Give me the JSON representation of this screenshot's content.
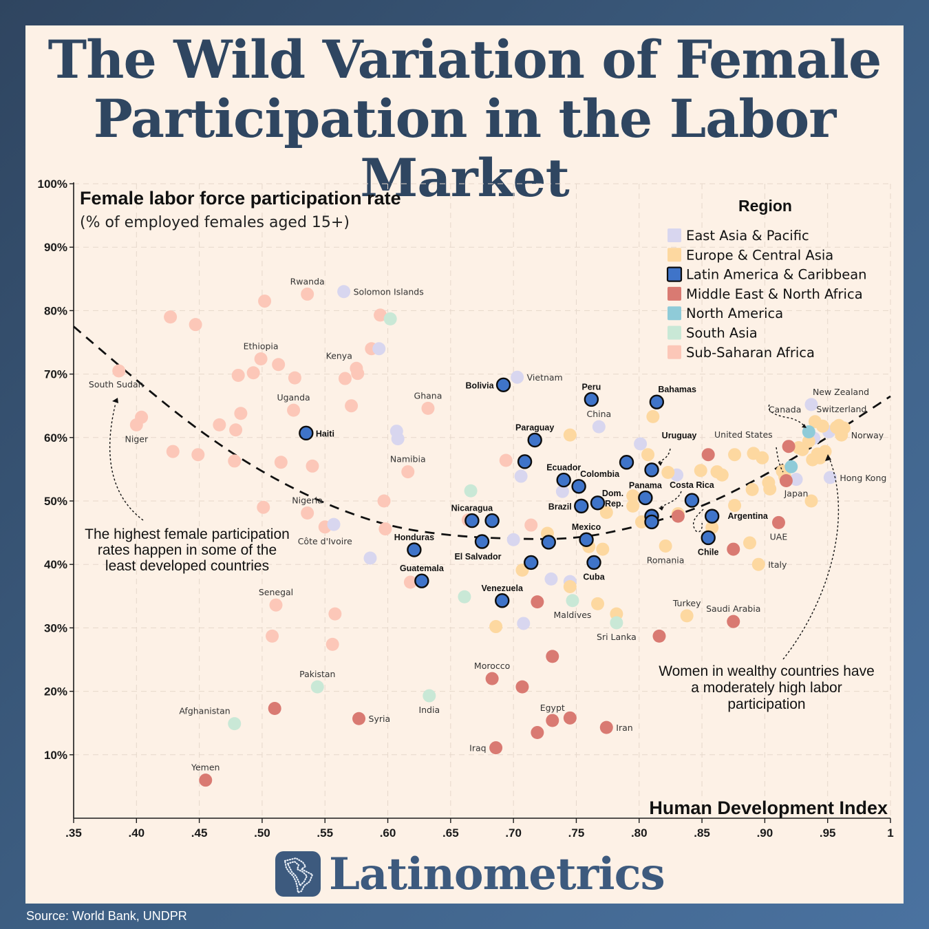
{
  "title_line1": "The Wild Variation of Female",
  "title_line2": "Participation in the Labor Market",
  "source": "Source: World Bank, UNDPR",
  "brand": "Latinometrics",
  "chart_data": {
    "type": "scatter",
    "title": "Female labor force participation rate",
    "subtitle": "(% of employed females aged 15+)",
    "xlabel": "Human Development Index",
    "xlim": [
      0.35,
      1.0
    ],
    "ylim": [
      0,
      100
    ],
    "xticks": [
      ".35",
      ".40",
      ".45",
      ".50",
      ".55",
      ".60",
      ".65",
      ".70",
      ".75",
      ".80",
      ".85",
      ".90",
      ".95",
      "1"
    ],
    "yticks": [
      "10%",
      "20%",
      "30%",
      "40%",
      "50%",
      "60%",
      "70%",
      "80%",
      "90%",
      "100%"
    ],
    "grid": true,
    "legend_position": "top-right",
    "legend_title": "Region",
    "regions": [
      {
        "key": "eap",
        "name": "East Asia & Pacific",
        "color": "#d8d6ef"
      },
      {
        "key": "eca",
        "name": "Europe & Central Asia",
        "color": "#fdd8a0"
      },
      {
        "key": "lac",
        "name": "Latin America & Caribbean",
        "color": "#3f74c9"
      },
      {
        "key": "mena",
        "name": "Middle East & North Africa",
        "color": "#d97a72"
      },
      {
        "key": "na",
        "name": "North America",
        "color": "#8fcbd8"
      },
      {
        "key": "sa",
        "name": "South Asia",
        "color": "#c9e8d6"
      },
      {
        "key": "ssa",
        "name": "Sub-Saharan Africa",
        "color": "#fcc7b8"
      }
    ],
    "trend": {
      "x": [
        0.35,
        0.4,
        0.45,
        0.5,
        0.55,
        0.6,
        0.65,
        0.7,
        0.75,
        0.8,
        0.85,
        0.9,
        0.95,
        1.0
      ],
      "y": [
        77.5,
        69,
        61,
        54.5,
        49.5,
        46,
        44.5,
        44,
        44,
        46,
        49,
        54,
        60,
        66.5
      ]
    },
    "points": [
      {
        "x": 0.386,
        "y": 70.5,
        "r": "ssa",
        "label": "South Sudan",
        "lp": "bl"
      },
      {
        "x": 0.4,
        "y": 62.0,
        "r": "ssa",
        "label": "Niger",
        "lp": "b"
      },
      {
        "x": 0.404,
        "y": 63.2,
        "r": "ssa"
      },
      {
        "x": 0.427,
        "y": 79.0,
        "r": "ssa"
      },
      {
        "x": 0.429,
        "y": 57.8,
        "r": "ssa"
      },
      {
        "x": 0.447,
        "y": 77.8,
        "r": "ssa"
      },
      {
        "x": 0.449,
        "y": 57.3,
        "r": "ssa"
      },
      {
        "x": 0.466,
        "y": 62.0,
        "r": "ssa"
      },
      {
        "x": 0.478,
        "y": 56.3,
        "r": "ssa"
      },
      {
        "x": 0.479,
        "y": 61.2,
        "r": "ssa"
      },
      {
        "x": 0.481,
        "y": 69.8,
        "r": "ssa"
      },
      {
        "x": 0.483,
        "y": 63.8,
        "r": "ssa"
      },
      {
        "x": 0.493,
        "y": 70.2,
        "r": "ssa"
      },
      {
        "x": 0.499,
        "y": 72.4,
        "r": "ssa",
        "label": "Ethiopia",
        "lp": "t"
      },
      {
        "x": 0.501,
        "y": 49.0,
        "r": "ssa"
      },
      {
        "x": 0.502,
        "y": 81.5,
        "r": "ssa"
      },
      {
        "x": 0.508,
        "y": 28.7,
        "r": "ssa"
      },
      {
        "x": 0.511,
        "y": 33.6,
        "r": "ssa",
        "label": "Senegal",
        "lp": "t"
      },
      {
        "x": 0.513,
        "y": 71.5,
        "r": "ssa"
      },
      {
        "x": 0.515,
        "y": 56.1,
        "r": "ssa"
      },
      {
        "x": 0.525,
        "y": 64.3,
        "r": "ssa",
        "label": "Uganda",
        "lp": "t"
      },
      {
        "x": 0.526,
        "y": 69.4,
        "r": "ssa"
      },
      {
        "x": 0.536,
        "y": 82.6,
        "r": "ssa",
        "label": "Rwanda",
        "lp": "t"
      },
      {
        "x": 0.536,
        "y": 48.1,
        "r": "ssa",
        "label": "Nigeria",
        "lp": "t"
      },
      {
        "x": 0.54,
        "y": 55.5,
        "r": "ssa"
      },
      {
        "x": 0.55,
        "y": 45.9,
        "r": "ssa",
        "label": "Côte d'Ivoire",
        "lp": "b"
      },
      {
        "x": 0.556,
        "y": 27.4,
        "r": "ssa"
      },
      {
        "x": 0.558,
        "y": 32.2,
        "r": "ssa"
      },
      {
        "x": 0.566,
        "y": 69.3,
        "r": "ssa"
      },
      {
        "x": 0.571,
        "y": 65.0,
        "r": "ssa"
      },
      {
        "x": 0.575,
        "y": 70.9,
        "r": "ssa",
        "label": "Kenya",
        "lp": "tl"
      },
      {
        "x": 0.576,
        "y": 70.1,
        "r": "ssa"
      },
      {
        "x": 0.587,
        "y": 74.0,
        "r": "ssa"
      },
      {
        "x": 0.594,
        "y": 79.3,
        "r": "ssa"
      },
      {
        "x": 0.597,
        "y": 50.0,
        "r": "ssa"
      },
      {
        "x": 0.598,
        "y": 45.6,
        "r": "ssa"
      },
      {
        "x": 0.616,
        "y": 54.6,
        "r": "ssa",
        "label": "Namibia",
        "lp": "t"
      },
      {
        "x": 0.618,
        "y": 37.2,
        "r": "ssa"
      },
      {
        "x": 0.632,
        "y": 64.6,
        "r": "ssa",
        "label": "Ghana",
        "lp": "t"
      },
      {
        "x": 0.664,
        "y": 47.0,
        "r": "ssa"
      },
      {
        "x": 0.694,
        "y": 56.4,
        "r": "ssa"
      },
      {
        "x": 0.714,
        "y": 46.2,
        "r": "ssa"
      },
      {
        "x": 0.557,
        "y": 46.3,
        "r": "eap"
      },
      {
        "x": 0.565,
        "y": 83.0,
        "r": "eap",
        "label": "Solomon Islands",
        "lp": "r"
      },
      {
        "x": 0.586,
        "y": 41.0,
        "r": "eap"
      },
      {
        "x": 0.593,
        "y": 74.0,
        "r": "eap"
      },
      {
        "x": 0.607,
        "y": 61.0,
        "r": "eap"
      },
      {
        "x": 0.608,
        "y": 59.8,
        "r": "eap"
      },
      {
        "x": 0.7,
        "y": 43.9,
        "r": "eap"
      },
      {
        "x": 0.703,
        "y": 69.5,
        "r": "eap",
        "label": "Vietnam",
        "lp": "r"
      },
      {
        "x": 0.706,
        "y": 53.9,
        "r": "eap"
      },
      {
        "x": 0.708,
        "y": 30.7,
        "r": "eap"
      },
      {
        "x": 0.73,
        "y": 37.7,
        "r": "eap"
      },
      {
        "x": 0.739,
        "y": 51.5,
        "r": "eap"
      },
      {
        "x": 0.745,
        "y": 37.3,
        "r": "eap"
      },
      {
        "x": 0.768,
        "y": 61.7,
        "r": "eap",
        "label": "China",
        "lp": "t"
      },
      {
        "x": 0.801,
        "y": 59.0,
        "r": "eap"
      },
      {
        "x": 0.83,
        "y": 54.1,
        "r": "eap"
      },
      {
        "x": 0.925,
        "y": 53.4,
        "r": "eap",
        "label": "Japan",
        "lp": "b"
      },
      {
        "x": 0.937,
        "y": 65.2,
        "r": "eap",
        "label": "New Zealand",
        "lp": "tr"
      },
      {
        "x": 0.939,
        "y": 59.9,
        "r": "eap"
      },
      {
        "x": 0.952,
        "y": 53.7,
        "r": "eap",
        "label": "Hong Kong",
        "lp": "r"
      },
      {
        "x": 0.951,
        "y": 60.9,
        "r": "eap"
      },
      {
        "x": 0.686,
        "y": 30.2,
        "r": "eca"
      },
      {
        "x": 0.707,
        "y": 39.1,
        "r": "eca"
      },
      {
        "x": 0.727,
        "y": 44.9,
        "r": "eca"
      },
      {
        "x": 0.745,
        "y": 60.4,
        "r": "eca"
      },
      {
        "x": 0.745,
        "y": 36.5,
        "r": "eca"
      },
      {
        "x": 0.76,
        "y": 42.8,
        "r": "eca"
      },
      {
        "x": 0.767,
        "y": 33.8,
        "r": "eca"
      },
      {
        "x": 0.771,
        "y": 42.4,
        "r": "eca"
      },
      {
        "x": 0.774,
        "y": 48.2,
        "r": "eca"
      },
      {
        "x": 0.782,
        "y": 32.2,
        "r": "eca"
      },
      {
        "x": 0.795,
        "y": 50.8,
        "r": "eca"
      },
      {
        "x": 0.795,
        "y": 49.2,
        "r": "eca"
      },
      {
        "x": 0.802,
        "y": 46.7,
        "r": "eca"
      },
      {
        "x": 0.807,
        "y": 57.3,
        "r": "eca"
      },
      {
        "x": 0.811,
        "y": 63.3,
        "r": "eca"
      },
      {
        "x": 0.821,
        "y": 42.9,
        "r": "eca",
        "label": "Romania",
        "lp": "b"
      },
      {
        "x": 0.823,
        "y": 54.5,
        "r": "eca"
      },
      {
        "x": 0.831,
        "y": 48.0,
        "r": "eca"
      },
      {
        "x": 0.838,
        "y": 31.9,
        "r": "eca",
        "label": "Turkey",
        "lp": "t"
      },
      {
        "x": 0.849,
        "y": 54.8,
        "r": "eca"
      },
      {
        "x": 0.858,
        "y": 45.8,
        "r": "eca"
      },
      {
        "x": 0.862,
        "y": 54.6,
        "r": "eca"
      },
      {
        "x": 0.866,
        "y": 54.1,
        "r": "eca"
      },
      {
        "x": 0.876,
        "y": 57.3,
        "r": "eca"
      },
      {
        "x": 0.876,
        "y": 49.3,
        "r": "eca"
      },
      {
        "x": 0.888,
        "y": 43.4,
        "r": "eca"
      },
      {
        "x": 0.89,
        "y": 51.8,
        "r": "eca"
      },
      {
        "x": 0.891,
        "y": 57.5,
        "r": "eca"
      },
      {
        "x": 0.895,
        "y": 40.0,
        "r": "eca",
        "label": "Italy",
        "lp": "r"
      },
      {
        "x": 0.898,
        "y": 56.8,
        "r": "eca"
      },
      {
        "x": 0.903,
        "y": 52.9,
        "r": "eca"
      },
      {
        "x": 0.904,
        "y": 51.9,
        "r": "eca"
      },
      {
        "x": 0.914,
        "y": 54.7,
        "r": "eca"
      },
      {
        "x": 0.916,
        "y": 53.8,
        "r": "eca"
      },
      {
        "x": 0.927,
        "y": 58.4,
        "r": "eca"
      },
      {
        "x": 0.93,
        "y": 58.1,
        "r": "eca"
      },
      {
        "x": 0.935,
        "y": 59.4,
        "r": "eca"
      },
      {
        "x": 0.937,
        "y": 50.0,
        "r": "eca"
      },
      {
        "x": 0.938,
        "y": 56.5,
        "r": "eca"
      },
      {
        "x": 0.94,
        "y": 62.5,
        "r": "eca",
        "label": "Switzerland",
        "lp": "tr"
      },
      {
        "x": 0.942,
        "y": 57.4,
        "r": "eca"
      },
      {
        "x": 0.944,
        "y": 56.8,
        "r": "eca"
      },
      {
        "x": 0.946,
        "y": 61.8,
        "r": "eca"
      },
      {
        "x": 0.948,
        "y": 57.8,
        "r": "eca"
      },
      {
        "x": 0.957,
        "y": 61.6,
        "r": "eca"
      },
      {
        "x": 0.959,
        "y": 61.9,
        "r": "eca"
      },
      {
        "x": 0.961,
        "y": 60.4,
        "r": "eca",
        "label": "Norway",
        "lp": "r"
      },
      {
        "x": 0.963,
        "y": 61.5,
        "r": "eca"
      },
      {
        "x": 0.51,
        "y": 17.3,
        "r": "mena"
      },
      {
        "x": 0.455,
        "y": 6.0,
        "r": "mena",
        "label": "Yemen",
        "lp": "t"
      },
      {
        "x": 0.577,
        "y": 15.7,
        "r": "mena",
        "label": "Syria",
        "lp": "r"
      },
      {
        "x": 0.683,
        "y": 22.0,
        "r": "mena",
        "label": "Morocco",
        "lp": "t"
      },
      {
        "x": 0.686,
        "y": 11.1,
        "r": "mena",
        "label": "Iraq",
        "lp": "l"
      },
      {
        "x": 0.707,
        "y": 20.7,
        "r": "mena"
      },
      {
        "x": 0.719,
        "y": 13.5,
        "r": "mena"
      },
      {
        "x": 0.719,
        "y": 34.1,
        "r": "mena"
      },
      {
        "x": 0.731,
        "y": 25.5,
        "r": "mena"
      },
      {
        "x": 0.731,
        "y": 15.4,
        "r": "mena",
        "label": "Egypt",
        "lp": "t"
      },
      {
        "x": 0.745,
        "y": 15.8,
        "r": "mena"
      },
      {
        "x": 0.774,
        "y": 14.3,
        "r": "mena",
        "label": "Iran",
        "lp": "r"
      },
      {
        "x": 0.816,
        "y": 28.7,
        "r": "mena"
      },
      {
        "x": 0.831,
        "y": 47.6,
        "r": "mena"
      },
      {
        "x": 0.855,
        "y": 57.3,
        "r": "mena"
      },
      {
        "x": 0.875,
        "y": 31.0,
        "r": "mena",
        "label": "Saudi Arabia",
        "lp": "t"
      },
      {
        "x": 0.875,
        "y": 42.4,
        "r": "mena"
      },
      {
        "x": 0.911,
        "y": 46.6,
        "r": "mena",
        "label": "UAE",
        "lp": "b"
      },
      {
        "x": 0.917,
        "y": 53.2,
        "r": "mena"
      },
      {
        "x": 0.919,
        "y": 58.6,
        "r": "mena"
      },
      {
        "x": 0.921,
        "y": 55.4,
        "r": "na"
      },
      {
        "x": 0.935,
        "y": 60.9,
        "r": "na"
      },
      {
        "x": 0.602,
        "y": 78.7,
        "r": "sa"
      },
      {
        "x": 0.544,
        "y": 20.7,
        "r": "sa",
        "label": "Pakistan",
        "lp": "t"
      },
      {
        "x": 0.478,
        "y": 14.9,
        "r": "sa",
        "label": "Afghanistan",
        "lp": "tl"
      },
      {
        "x": 0.633,
        "y": 19.3,
        "r": "sa",
        "label": "India",
        "lp": "b"
      },
      {
        "x": 0.661,
        "y": 34.9,
        "r": "sa"
      },
      {
        "x": 0.666,
        "y": 51.6,
        "r": "sa"
      },
      {
        "x": 0.747,
        "y": 34.3,
        "r": "sa",
        "label": "Maldives",
        "lp": "b"
      },
      {
        "x": 0.782,
        "y": 30.8,
        "r": "sa",
        "label": "Sri Lanka",
        "lp": "b"
      },
      {
        "x": 0.535,
        "y": 60.7,
        "r": "lac",
        "label": "Haiti",
        "lp": "r"
      },
      {
        "x": 0.621,
        "y": 42.3,
        "r": "lac",
        "label": "Honduras",
        "lp": "t"
      },
      {
        "x": 0.627,
        "y": 37.4,
        "r": "lac",
        "label": "Guatemala",
        "lp": "t"
      },
      {
        "x": 0.667,
        "y": 46.9,
        "r": "lac",
        "label": "Nicaragua",
        "lp": "t"
      },
      {
        "x": 0.675,
        "y": 43.6,
        "r": "lac",
        "label": "El Salvador",
        "lp": "br"
      },
      {
        "x": 0.683,
        "y": 46.9,
        "r": "lac"
      },
      {
        "x": 0.692,
        "y": 68.3,
        "r": "lac",
        "label": "Bolivia",
        "lp": "l"
      },
      {
        "x": 0.691,
        "y": 34.3,
        "r": "lac",
        "label": "Venezuela",
        "lp": "t"
      },
      {
        "x": 0.709,
        "y": 56.2,
        "r": "lac"
      },
      {
        "x": 0.714,
        "y": 40.3,
        "r": "lac"
      },
      {
        "x": 0.717,
        "y": 59.6,
        "r": "lac",
        "label": "Paraguay",
        "lp": "t"
      },
      {
        "x": 0.728,
        "y": 43.5,
        "r": "lac"
      },
      {
        "x": 0.74,
        "y": 53.3,
        "r": "lac",
        "label": "Ecuador",
        "lp": "t"
      },
      {
        "x": 0.752,
        "y": 52.3,
        "r": "lac",
        "label": "Colombia",
        "lp": "tr"
      },
      {
        "x": 0.754,
        "y": 49.2,
        "r": "lac",
        "label": "Brazil",
        "lp": "l"
      },
      {
        "x": 0.758,
        "y": 43.9,
        "r": "lac",
        "label": "Mexico",
        "lp": "t"
      },
      {
        "x": 0.762,
        "y": 66.0,
        "r": "lac",
        "label": "Peru",
        "lp": "t"
      },
      {
        "x": 0.764,
        "y": 40.3,
        "r": "lac",
        "label": "Cuba",
        "lp": "b"
      },
      {
        "x": 0.767,
        "y": 49.7,
        "r": "lac",
        "label": "Dom.",
        "label2": "Rep.",
        "lp": "dr"
      },
      {
        "x": 0.79,
        "y": 56.1,
        "r": "lac"
      },
      {
        "x": 0.805,
        "y": 50.5,
        "r": "lac",
        "label": "Panama",
        "lp": "t"
      },
      {
        "x": 0.81,
        "y": 54.9,
        "r": "lac",
        "label": "Uruguay",
        "lp": "uc"
      },
      {
        "x": 0.81,
        "y": 47.6,
        "r": "lac"
      },
      {
        "x": 0.81,
        "y": 46.7,
        "r": "lac"
      },
      {
        "x": 0.814,
        "y": 65.6,
        "r": "lac",
        "label": "Bahamas",
        "lp": "tr"
      },
      {
        "x": 0.842,
        "y": 50.1,
        "r": "lac",
        "label": "Costa Rica",
        "lp": "cr"
      },
      {
        "x": 0.855,
        "y": 44.2,
        "r": "lac",
        "label": "Chile",
        "lp": "b"
      },
      {
        "x": 0.858,
        "y": 47.6,
        "r": "lac",
        "label": "Argentina",
        "lp": "ar"
      }
    ],
    "extra_labels": [
      {
        "text": "Canada",
        "x": 0.916,
        "y": 64.5
      },
      {
        "text": "United States",
        "x": 0.883,
        "y": 60.5
      }
    ],
    "annotations": [
      {
        "lines": [
          "The highest female participation",
          "rates happen in some of the",
          "least developed countries"
        ]
      },
      {
        "lines": [
          "Women in wealthy countries have",
          "a moderately high labor",
          "participation"
        ]
      }
    ]
  }
}
